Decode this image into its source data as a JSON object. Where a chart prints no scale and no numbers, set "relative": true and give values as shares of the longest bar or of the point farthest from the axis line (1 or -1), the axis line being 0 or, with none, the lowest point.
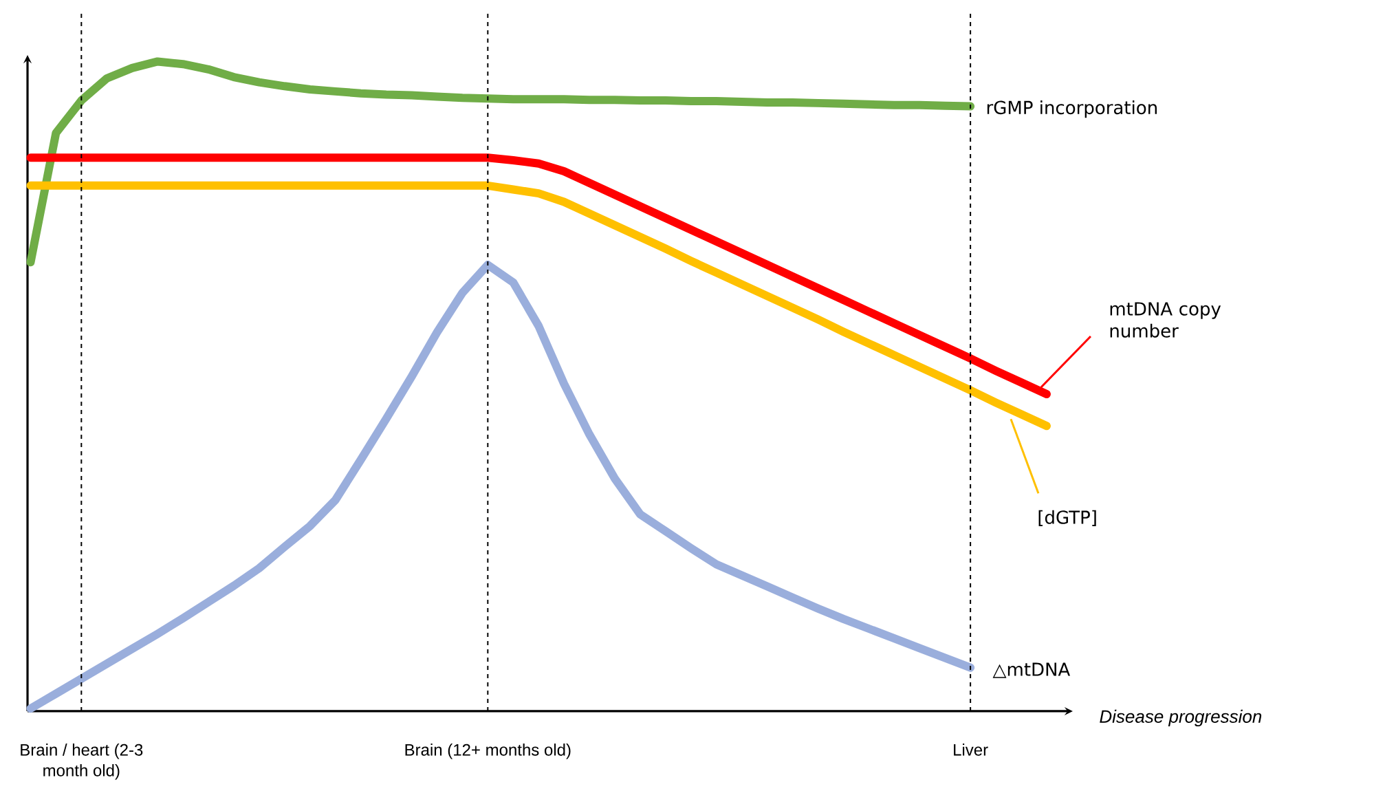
{
  "chart_data": {
    "type": "line",
    "relative": true,
    "xlabel": "*Disease progression*",
    "tick_labels": "x",
    "marker": "none",
    "line_style": "solid",
    "categories": [
      null,
      null,
      "Brain / heart (2-3 month old)",
      null,
      null,
      null,
      null,
      null,
      null,
      null,
      null,
      null,
      null,
      null,
      null,
      null,
      null,
      null,
      "Brain (12+ months old)",
      null,
      null,
      null,
      null,
      null,
      null,
      null,
      null,
      null,
      null,
      null,
      null,
      null,
      null,
      null,
      null,
      null,
      null,
      "Liver",
      null,
      null,
      null
    ],
    "series": [
      {
        "name": "rGMP incorporation",
        "color": "#70ad47",
        "values": [
          0.691,
          0.89,
          0.94,
          0.974,
          0.99,
          1.0,
          0.996,
          0.988,
          0.976,
          0.968,
          0.962,
          0.957,
          0.954,
          0.951,
          0.949,
          0.948,
          0.946,
          0.944,
          0.943,
          0.942,
          0.942,
          0.942,
          0.941,
          0.941,
          0.94,
          0.94,
          0.939,
          0.939,
          0.938,
          0.937,
          0.937,
          0.936,
          0.935,
          0.934,
          0.933,
          0.933,
          0.932,
          0.931,
          null,
          null,
          null
        ]
      },
      {
        "name": "mtDNA copy number",
        "color": "#ff0000",
        "values": [
          0.852,
          0.852,
          0.852,
          0.852,
          0.852,
          0.852,
          0.852,
          0.852,
          0.852,
          0.852,
          0.852,
          0.852,
          0.852,
          0.852,
          0.852,
          0.852,
          0.852,
          0.852,
          0.852,
          0.848,
          0.843,
          0.831,
          0.813,
          0.795,
          0.777,
          0.759,
          0.741,
          0.723,
          0.705,
          0.687,
          0.669,
          0.651,
          0.633,
          0.615,
          0.597,
          0.579,
          0.561,
          0.543,
          0.524,
          0.506,
          0.488
        ]
      },
      {
        "name": "[dGTP]",
        "color": "#ffc000",
        "values": [
          0.809,
          0.809,
          0.809,
          0.809,
          0.809,
          0.809,
          0.809,
          0.809,
          0.809,
          0.809,
          0.809,
          0.809,
          0.809,
          0.809,
          0.809,
          0.809,
          0.809,
          0.809,
          0.809,
          0.803,
          0.797,
          0.784,
          0.766,
          0.748,
          0.73,
          0.712,
          0.693,
          0.675,
          0.657,
          0.639,
          0.621,
          0.603,
          0.584,
          0.566,
          0.548,
          0.53,
          0.512,
          0.494,
          0.475,
          0.457,
          0.439
        ]
      },
      {
        "name": "△mtDNA",
        "color": "#9aaedc",
        "values": [
          0.004,
          0.027,
          0.05,
          0.073,
          0.096,
          0.119,
          0.143,
          0.168,
          0.193,
          0.22,
          0.253,
          0.285,
          0.325,
          0.387,
          0.45,
          0.515,
          0.583,
          0.644,
          0.687,
          0.66,
          0.593,
          0.504,
          0.426,
          0.358,
          0.303,
          0.277,
          0.251,
          0.226,
          0.209,
          0.192,
          0.175,
          0.158,
          0.142,
          0.127,
          0.112,
          0.097,
          0.082,
          0.067,
          null,
          null,
          null
        ]
      }
    ],
    "ref_lines": [
      {
        "axis": "x",
        "value": "Brain / heart (2-3 month old)",
        "color": "#000000",
        "line_style": "dashed"
      },
      {
        "axis": "x",
        "value": "Brain (12+ months old)",
        "color": "#000000",
        "line_style": "dashed"
      },
      {
        "axis": "x",
        "value": "Liver",
        "color": "#000000",
        "line_style": "dashed"
      }
    ]
  }
}
